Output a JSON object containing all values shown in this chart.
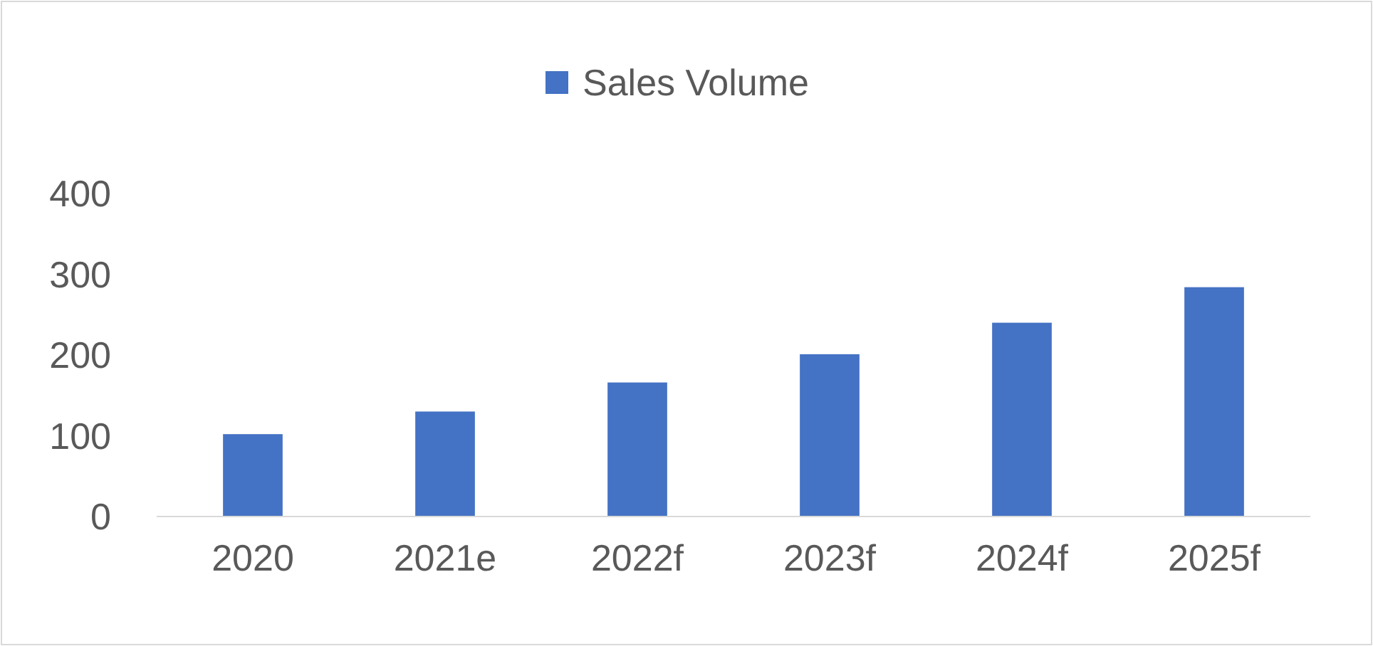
{
  "chart_data": {
    "type": "bar",
    "categories": [
      "2020",
      "2021e",
      "2022f",
      "2023f",
      "2024f",
      "2025f"
    ],
    "series": [
      {
        "name": "Sales Volume",
        "color": "#4472c4",
        "values": [
          102,
          130,
          166,
          201,
          240,
          284
        ]
      }
    ],
    "ylim": [
      0,
      400
    ],
    "yticks": [
      0,
      100,
      200,
      300,
      400
    ],
    "grid": false,
    "legend": "top"
  }
}
